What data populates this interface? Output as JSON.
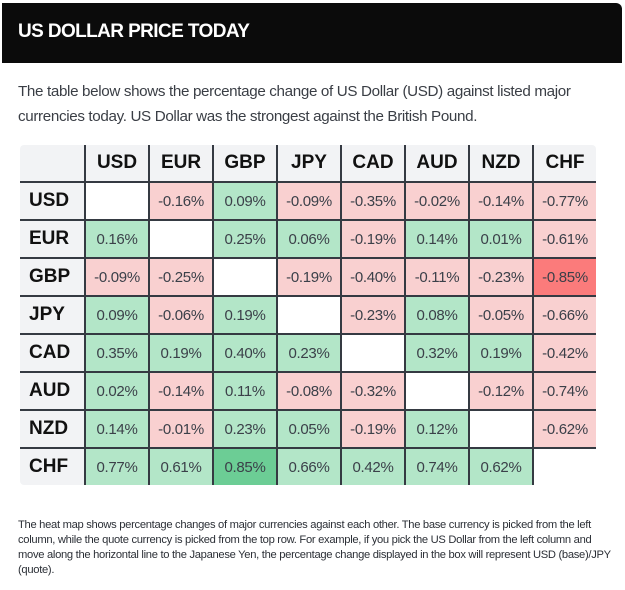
{
  "header": {
    "title": "US DOLLAR PRICE TODAY"
  },
  "intro": "The table below shows the percentage change of US Dollar (USD) against listed major currencies today. US Dollar was the strongest against the British Pound.",
  "footnote": "The heat map shows percentage changes of major currencies against each other. The base currency is picked from the left column, while the quote currency is picked from the top row. For example, if you pick the US Dollar from the left column and move along the horizontal line to the Japanese Yen, the percentage change displayed in the box will represent USD (base)/JPY (quote).",
  "colors": {
    "positive_light": "#b3e6c8",
    "positive_strong": "#6ccd95",
    "negative_light": "#f9d0d0",
    "negative_strong": "#fb7b7b",
    "empty": "#ffffff"
  },
  "chart_data": {
    "type": "heatmap",
    "title": "US DOLLAR PRICE TODAY",
    "xlabel": "Quote currency",
    "ylabel": "Base currency",
    "unit": "%",
    "columns": [
      "USD",
      "EUR",
      "GBP",
      "JPY",
      "CAD",
      "AUD",
      "NZD",
      "CHF"
    ],
    "rows": [
      "USD",
      "EUR",
      "GBP",
      "JPY",
      "CAD",
      "AUD",
      "NZD",
      "CHF"
    ],
    "values": [
      [
        null,
        -0.16,
        0.09,
        -0.09,
        -0.35,
        -0.02,
        -0.14,
        -0.77
      ],
      [
        0.16,
        null,
        0.25,
        0.06,
        -0.19,
        0.14,
        0.01,
        -0.61
      ],
      [
        -0.09,
        -0.25,
        null,
        -0.19,
        -0.4,
        -0.11,
        -0.23,
        -0.85
      ],
      [
        0.09,
        -0.06,
        0.19,
        null,
        -0.23,
        0.08,
        -0.05,
        -0.66
      ],
      [
        0.35,
        0.19,
        0.4,
        0.23,
        null,
        0.32,
        0.19,
        -0.42
      ],
      [
        0.02,
        -0.14,
        0.11,
        -0.08,
        -0.32,
        null,
        -0.12,
        -0.74
      ],
      [
        0.14,
        -0.01,
        0.23,
        0.05,
        -0.19,
        0.12,
        null,
        -0.62
      ],
      [
        0.77,
        0.61,
        0.85,
        0.66,
        0.42,
        0.74,
        0.62,
        null
      ]
    ],
    "highlight": {
      "max": 0.85,
      "min": -0.85
    }
  }
}
